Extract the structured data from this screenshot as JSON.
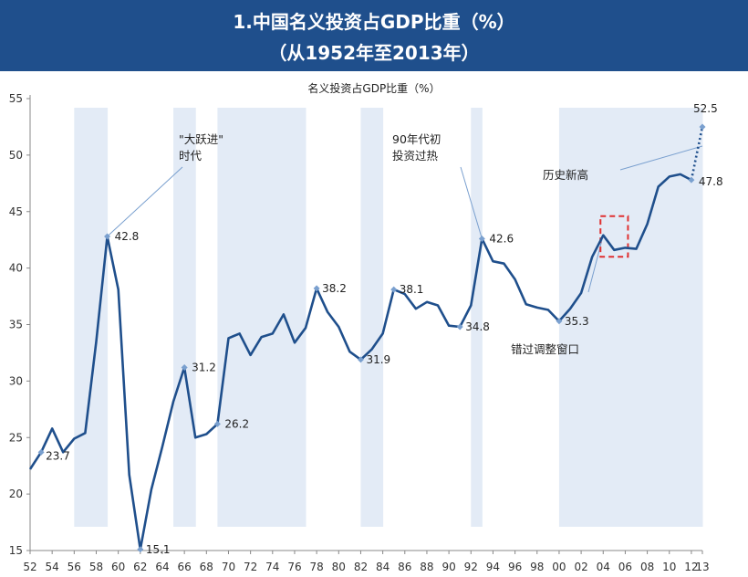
{
  "header": {
    "title_line1": "1.中国名义投资占GDP比重（%）",
    "title_line2": "（从1952年至2013年）"
  },
  "chart_data": {
    "type": "line",
    "title": "名义投资占GDP比重（%）",
    "xlabel": "",
    "ylabel": "",
    "ylim": [
      15,
      55
    ],
    "yticks": [
      15,
      20,
      25,
      30,
      35,
      40,
      45,
      50,
      55
    ],
    "xlim": [
      1952,
      2013
    ],
    "xtick_labels": [
      "52",
      "54",
      "56",
      "58",
      "60",
      "62",
      "64",
      "66",
      "68",
      "70",
      "72",
      "74",
      "76",
      "78",
      "80",
      "82",
      "84",
      "86",
      "88",
      "90",
      "92",
      "94",
      "96",
      "98",
      "00",
      "02",
      "04",
      "06",
      "08",
      "10",
      "12",
      "13"
    ],
    "series": [
      {
        "name": "",
        "color": "#1f4f8c",
        "x": [
          1952,
          1953,
          1954,
          1955,
          1956,
          1957,
          1958,
          1959,
          1960,
          1961,
          1962,
          1963,
          1964,
          1965,
          1966,
          1967,
          1968,
          1969,
          1970,
          1971,
          1972,
          1973,
          1974,
          1975,
          1976,
          1977,
          1978,
          1979,
          1980,
          1981,
          1982,
          1983,
          1984,
          1985,
          1986,
          1987,
          1988,
          1989,
          1990,
          1991,
          1992,
          1993,
          1994,
          1995,
          1996,
          1997,
          1998,
          1999,
          2000,
          2001,
          2002,
          2003,
          2004,
          2005,
          2006,
          2007,
          2008,
          2009,
          2010,
          2011,
          2012
        ],
        "y": [
          22.2,
          23.7,
          25.8,
          23.7,
          24.9,
          25.4,
          33.5,
          42.8,
          38.1,
          21.7,
          15.1,
          20.4,
          24.2,
          28.2,
          31.2,
          25.0,
          25.3,
          26.2,
          33.8,
          34.2,
          32.3,
          33.9,
          34.2,
          35.9,
          33.4,
          34.7,
          38.2,
          36.1,
          34.8,
          32.6,
          31.9,
          32.8,
          34.2,
          38.1,
          37.7,
          36.4,
          37.0,
          36.7,
          34.9,
          34.8,
          36.7,
          42.6,
          40.6,
          40.4,
          39.0,
          36.8,
          36.5,
          36.3,
          35.3,
          36.4,
          37.8,
          41.0,
          42.9,
          41.6,
          41.8,
          41.7,
          43.9,
          47.2,
          48.1,
          48.3,
          47.8
        ]
      }
    ],
    "projection": {
      "x": [
        2012,
        2013
      ],
      "y": [
        47.8,
        52.5
      ],
      "style": "dotted"
    },
    "shaded_periods": [
      [
        1956,
        1959
      ],
      [
        1965,
        1967
      ],
      [
        1969,
        1977
      ],
      [
        1982,
        1984
      ],
      [
        1992,
        1993
      ],
      [
        2000,
        2013
      ]
    ],
    "data_labels": [
      {
        "x": 1953,
        "y": 23.7,
        "text": "23.7"
      },
      {
        "x": 1959,
        "y": 42.8,
        "text": "42.8"
      },
      {
        "x": 1962,
        "y": 15.1,
        "text": "15.1"
      },
      {
        "x": 1966,
        "y": 31.2,
        "text": "31.2"
      },
      {
        "x": 1969,
        "y": 26.2,
        "text": "26.2"
      },
      {
        "x": 1978,
        "y": 38.2,
        "text": "38.2"
      },
      {
        "x": 1982,
        "y": 31.9,
        "text": "31.9"
      },
      {
        "x": 1985,
        "y": 38.1,
        "text": "38.1"
      },
      {
        "x": 1991,
        "y": 34.8,
        "text": "34.8"
      },
      {
        "x": 1993,
        "y": 42.6,
        "text": "42.6"
      },
      {
        "x": 2000,
        "y": 35.3,
        "text": "35.3"
      },
      {
        "x": 2012,
        "y": 47.8,
        "text": "47.8"
      },
      {
        "x": 2013,
        "y": 52.5,
        "text": "52.5"
      }
    ],
    "annotations": [
      {
        "lines": [
          "\"大跃进\"",
          "时代"
        ],
        "points_to": {
          "x": 1959,
          "y": 42.8
        }
      },
      {
        "lines": [
          "90年代初",
          "投资过热"
        ],
        "points_to": {
          "x": 1993,
          "y": 42.6
        }
      },
      {
        "lines": [
          "历史新高"
        ],
        "points_to": {
          "x": 2013,
          "y": 50.8
        }
      },
      {
        "lines": [
          "错过调整窗口"
        ],
        "points_to": {
          "x": 2004,
          "y": 42.9
        }
      }
    ],
    "highlight_box": {
      "x_range": [
        2004,
        2006
      ],
      "y_range": [
        41.0,
        44.6
      ],
      "color": "#e03030",
      "style": "dashed"
    },
    "shading_color": "#e3ebf6",
    "grid": false
  }
}
